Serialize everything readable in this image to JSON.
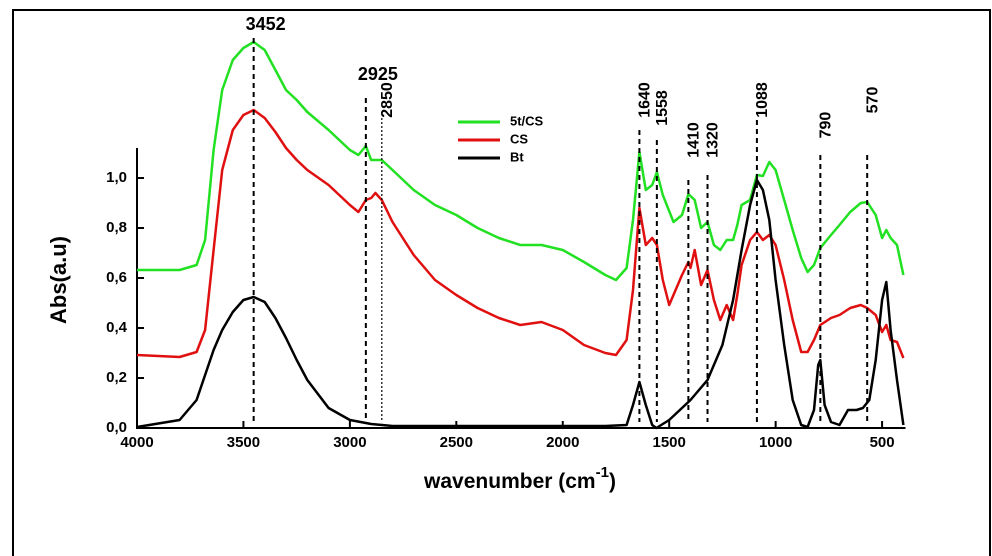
{
  "chart_data": {
    "type": "line",
    "y_label": "Abs(a.u)",
    "x_label": {
      "text": "wavenumber (cm",
      "superscript": "-1",
      "suffix": ")"
    },
    "xlim": [
      4000,
      390
    ],
    "ylim": [
      0,
      1.6
    ],
    "xticks": [
      4000,
      3500,
      3000,
      2500,
      2000,
      1500,
      1000,
      500
    ],
    "yticks": [
      {
        "value": 0,
        "label": "0,0"
      },
      {
        "value": 0.2,
        "label": "0,2"
      },
      {
        "value": 0.4,
        "label": "0,4"
      },
      {
        "value": 0.6,
        "label": "0,6"
      },
      {
        "value": 0.8,
        "label": "0,8"
      },
      {
        "value": 1.0,
        "label": "1,0"
      }
    ],
    "peaks": [
      3452,
      2925,
      2850,
      1640,
      1558,
      1410,
      1320,
      1088,
      790,
      570
    ],
    "series": [
      {
        "name": "5t/CS",
        "color": "#22e022",
        "x": [
          4000,
          3800,
          3720,
          3680,
          3640,
          3600,
          3550,
          3500,
          3452,
          3400,
          3350,
          3300,
          3250,
          3200,
          3100,
          3000,
          2960,
          2925,
          2900,
          2850,
          2800,
          2700,
          2600,
          2500,
          2400,
          2300,
          2200,
          2100,
          2000,
          1900,
          1800,
          1750,
          1700,
          1670,
          1640,
          1610,
          1580,
          1558,
          1530,
          1480,
          1440,
          1410,
          1380,
          1350,
          1320,
          1290,
          1260,
          1230,
          1200,
          1180,
          1160,
          1120,
          1088,
          1060,
          1030,
          1000,
          960,
          920,
          880,
          850,
          820,
          790,
          740,
          700,
          650,
          600,
          570,
          530,
          500,
          480,
          460,
          430,
          400
        ],
        "values": [
          0.632,
          0.632,
          0.652,
          0.752,
          1.112,
          1.352,
          1.472,
          1.52,
          1.544,
          1.512,
          1.432,
          1.352,
          1.312,
          1.264,
          1.192,
          1.112,
          1.092,
          1.128,
          1.072,
          1.072,
          1.032,
          0.952,
          0.892,
          0.852,
          0.8,
          0.76,
          0.732,
          0.732,
          0.712,
          0.664,
          0.612,
          0.592,
          0.64,
          0.832,
          1.104,
          0.952,
          0.972,
          1.024,
          0.932,
          0.824,
          0.852,
          0.936,
          0.912,
          0.8,
          0.824,
          0.732,
          0.712,
          0.752,
          0.752,
          0.812,
          0.892,
          0.912,
          1.012,
          1.008,
          1.064,
          1.032,
          0.912,
          0.792,
          0.68,
          0.624,
          0.652,
          0.72,
          0.772,
          0.812,
          0.864,
          0.9,
          0.904,
          0.852,
          0.76,
          0.792,
          0.76,
          0.732,
          0.612
        ]
      },
      {
        "name": "CS",
        "color": "#e01010",
        "x": [
          4000,
          3800,
          3720,
          3680,
          3640,
          3600,
          3550,
          3500,
          3452,
          3400,
          3350,
          3300,
          3250,
          3200,
          3100,
          3000,
          2960,
          2925,
          2900,
          2880,
          2850,
          2800,
          2700,
          2600,
          2500,
          2400,
          2300,
          2200,
          2100,
          2000,
          1900,
          1800,
          1750,
          1700,
          1670,
          1640,
          1610,
          1580,
          1558,
          1530,
          1500,
          1440,
          1410,
          1400,
          1380,
          1350,
          1320,
          1290,
          1260,
          1230,
          1200,
          1180,
          1160,
          1120,
          1088,
          1060,
          1030,
          1000,
          960,
          920,
          880,
          850,
          820,
          790,
          740,
          700,
          650,
          600,
          570,
          530,
          500,
          480,
          460,
          430,
          400
        ],
        "values": [
          0.292,
          0.284,
          0.304,
          0.392,
          0.712,
          1.032,
          1.192,
          1.252,
          1.272,
          1.24,
          1.184,
          1.12,
          1.072,
          1.032,
          0.972,
          0.892,
          0.864,
          0.912,
          0.92,
          0.94,
          0.912,
          0.824,
          0.692,
          0.592,
          0.532,
          0.48,
          0.44,
          0.412,
          0.424,
          0.392,
          0.332,
          0.3,
          0.292,
          0.352,
          0.552,
          0.88,
          0.732,
          0.76,
          0.732,
          0.592,
          0.492,
          0.612,
          0.664,
          0.64,
          0.712,
          0.572,
          0.632,
          0.512,
          0.432,
          0.492,
          0.432,
          0.532,
          0.652,
          0.752,
          0.784,
          0.752,
          0.772,
          0.732,
          0.592,
          0.432,
          0.304,
          0.304,
          0.352,
          0.412,
          0.44,
          0.452,
          0.48,
          0.492,
          0.48,
          0.452,
          0.384,
          0.412,
          0.352,
          0.344,
          0.28
        ]
      },
      {
        "name": "Bt",
        "color": "#000000",
        "x": [
          4000,
          3800,
          3720,
          3680,
          3640,
          3600,
          3550,
          3500,
          3452,
          3400,
          3350,
          3300,
          3250,
          3200,
          3100,
          3000,
          2900,
          2800,
          2500,
          2000,
          1800,
          1700,
          1670,
          1640,
          1610,
          1580,
          1560,
          1500,
          1400,
          1320,
          1250,
          1200,
          1160,
          1120,
          1088,
          1060,
          1030,
          1000,
          960,
          920,
          880,
          850,
          820,
          800,
          790,
          770,
          740,
          700,
          660,
          620,
          590,
          560,
          530,
          500,
          480,
          460,
          430,
          400
        ],
        "values": [
          0.004,
          0.032,
          0.112,
          0.212,
          0.312,
          0.392,
          0.464,
          0.512,
          0.524,
          0.504,
          0.44,
          0.36,
          0.272,
          0.192,
          0.08,
          0.032,
          0.016,
          0.008,
          0.008,
          0.008,
          0.008,
          0.012,
          0.092,
          0.184,
          0.092,
          0.012,
          0,
          0.032,
          0.112,
          0.192,
          0.332,
          0.512,
          0.712,
          0.892,
          0.992,
          0.952,
          0.832,
          0.592,
          0.332,
          0.112,
          0.012,
          0.004,
          0.072,
          0.252,
          0.272,
          0.092,
          0.024,
          0.012,
          0.072,
          0.072,
          0.08,
          0.112,
          0.272,
          0.512,
          0.584,
          0.392,
          0.192,
          0.012
        ]
      }
    ]
  }
}
